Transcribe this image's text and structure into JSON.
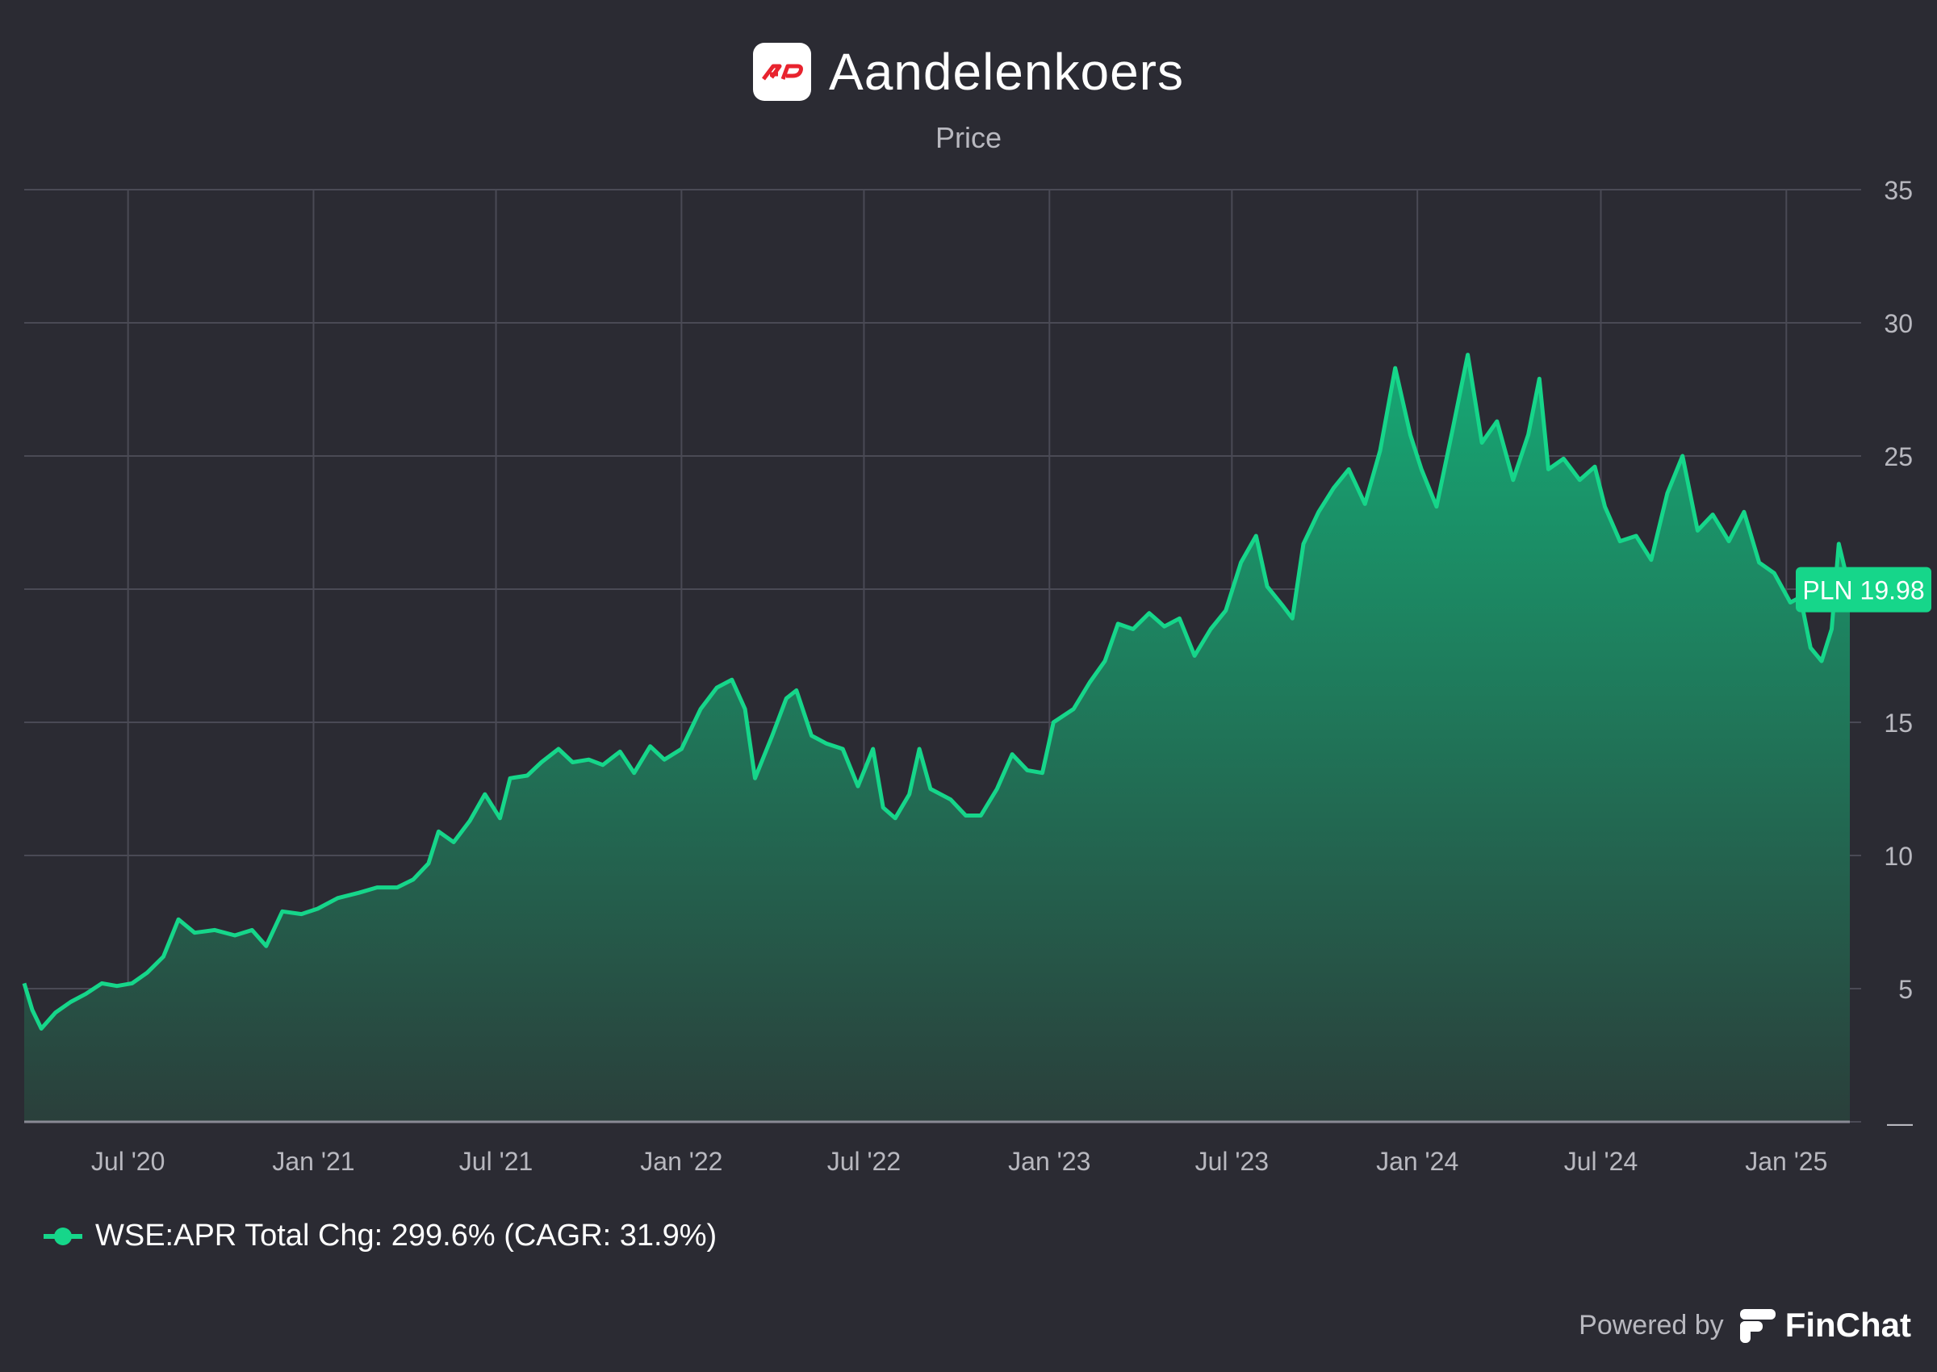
{
  "header": {
    "title": "Aandelenkoers",
    "subtitle": "Price"
  },
  "legend": {
    "label": "WSE:APR Total Chg: 299.6% (CAGR: 31.9%)",
    "color": "#16d68a"
  },
  "footer": {
    "powered_by": "Powered by",
    "brand": "FinChat"
  },
  "colors": {
    "background": "#2b2b33",
    "line": "#16d68a",
    "grid": "#4a4a55",
    "axis_text": "#b8b8bf",
    "logo_red": "#e8232e"
  },
  "chart_data": {
    "type": "area",
    "title": "Aandelenkoers",
    "subtitle": "Price",
    "currency": "PLN",
    "last_value_label": "PLN 19.98",
    "last_value": 19.98,
    "ylim": [
      0,
      35
    ],
    "yticks": [
      {
        "value": 35,
        "label": "35"
      },
      {
        "value": 30,
        "label": "30"
      },
      {
        "value": 25,
        "label": "25"
      },
      {
        "value": 20,
        "label": ""
      },
      {
        "value": 15,
        "label": "15"
      },
      {
        "value": 10,
        "label": "10"
      },
      {
        "value": 5,
        "label": "5"
      },
      {
        "value": 0,
        "label": "—"
      }
    ],
    "xlim": [
      "2020-03-20",
      "2025-03-05"
    ],
    "xticks": [
      {
        "date": "2020-07-01",
        "label": "Jul '20"
      },
      {
        "date": "2021-01-01",
        "label": "Jan '21"
      },
      {
        "date": "2021-07-01",
        "label": "Jul '21"
      },
      {
        "date": "2022-01-01",
        "label": "Jan '22"
      },
      {
        "date": "2022-07-01",
        "label": "Jul '22"
      },
      {
        "date": "2023-01-01",
        "label": "Jan '23"
      },
      {
        "date": "2023-07-01",
        "label": "Jul '23"
      },
      {
        "date": "2024-01-01",
        "label": "Jan '24"
      },
      {
        "date": "2024-07-01",
        "label": "Jul '24"
      },
      {
        "date": "2025-01-01",
        "label": "Jan '25"
      }
    ],
    "grid": true,
    "legend_position": "bottom-left",
    "series": [
      {
        "name": "WSE:APR",
        "points": [
          [
            "2020-03-20",
            5.2
          ],
          [
            "2020-03-28",
            4.2
          ],
          [
            "2020-04-06",
            3.5
          ],
          [
            "2020-04-20",
            4.1
          ],
          [
            "2020-05-05",
            4.5
          ],
          [
            "2020-05-20",
            4.8
          ],
          [
            "2020-06-05",
            5.2
          ],
          [
            "2020-06-20",
            5.1
          ],
          [
            "2020-07-05",
            5.2
          ],
          [
            "2020-07-20",
            5.6
          ],
          [
            "2020-08-05",
            6.2
          ],
          [
            "2020-08-20",
            7.6
          ],
          [
            "2020-09-05",
            7.1
          ],
          [
            "2020-09-25",
            7.2
          ],
          [
            "2020-10-15",
            7.0
          ],
          [
            "2020-11-01",
            7.2
          ],
          [
            "2020-11-15",
            6.6
          ],
          [
            "2020-12-01",
            7.9
          ],
          [
            "2020-12-20",
            7.8
          ],
          [
            "2021-01-05",
            8.0
          ],
          [
            "2021-01-25",
            8.4
          ],
          [
            "2021-02-15",
            8.6
          ],
          [
            "2021-03-05",
            8.8
          ],
          [
            "2021-03-25",
            8.8
          ],
          [
            "2021-04-10",
            9.1
          ],
          [
            "2021-04-25",
            9.7
          ],
          [
            "2021-05-05",
            10.9
          ],
          [
            "2021-05-20",
            10.5
          ],
          [
            "2021-06-05",
            11.3
          ],
          [
            "2021-06-20",
            12.3
          ],
          [
            "2021-07-05",
            11.4
          ],
          [
            "2021-07-15",
            12.9
          ],
          [
            "2021-08-01",
            13.0
          ],
          [
            "2021-08-15",
            13.5
          ],
          [
            "2021-09-01",
            14.0
          ],
          [
            "2021-09-15",
            13.5
          ],
          [
            "2021-10-01",
            13.6
          ],
          [
            "2021-10-15",
            13.4
          ],
          [
            "2021-11-01",
            13.9
          ],
          [
            "2021-11-15",
            13.1
          ],
          [
            "2021-12-01",
            14.1
          ],
          [
            "2021-12-15",
            13.6
          ],
          [
            "2022-01-01",
            14.0
          ],
          [
            "2022-01-20",
            15.5
          ],
          [
            "2022-02-05",
            16.3
          ],
          [
            "2022-02-20",
            16.6
          ],
          [
            "2022-03-05",
            15.5
          ],
          [
            "2022-03-15",
            12.9
          ],
          [
            "2022-04-01",
            14.5
          ],
          [
            "2022-04-15",
            15.9
          ],
          [
            "2022-04-25",
            16.2
          ],
          [
            "2022-05-10",
            14.5
          ],
          [
            "2022-05-25",
            14.2
          ],
          [
            "2022-06-10",
            14.0
          ],
          [
            "2022-06-25",
            12.6
          ],
          [
            "2022-07-10",
            14.0
          ],
          [
            "2022-07-20",
            11.8
          ],
          [
            "2022-08-01",
            11.4
          ],
          [
            "2022-08-15",
            12.3
          ],
          [
            "2022-08-25",
            14.0
          ],
          [
            "2022-09-05",
            12.5
          ],
          [
            "2022-09-25",
            12.1
          ],
          [
            "2022-10-10",
            11.5
          ],
          [
            "2022-10-25",
            11.5
          ],
          [
            "2022-11-10",
            12.5
          ],
          [
            "2022-11-25",
            13.8
          ],
          [
            "2022-12-10",
            13.2
          ],
          [
            "2022-12-25",
            13.1
          ],
          [
            "2023-01-05",
            15.0
          ],
          [
            "2023-01-25",
            15.5
          ],
          [
            "2023-02-10",
            16.5
          ],
          [
            "2023-02-25",
            17.3
          ],
          [
            "2023-03-10",
            18.7
          ],
          [
            "2023-03-25",
            18.5
          ],
          [
            "2023-04-10",
            19.1
          ],
          [
            "2023-04-25",
            18.6
          ],
          [
            "2023-05-10",
            18.9
          ],
          [
            "2023-05-25",
            17.5
          ],
          [
            "2023-06-10",
            18.5
          ],
          [
            "2023-06-25",
            19.2
          ],
          [
            "2023-07-10",
            21.0
          ],
          [
            "2023-07-25",
            22.0
          ],
          [
            "2023-08-05",
            20.1
          ],
          [
            "2023-08-20",
            19.4
          ],
          [
            "2023-08-30",
            18.9
          ],
          [
            "2023-09-10",
            21.7
          ],
          [
            "2023-09-25",
            22.9
          ],
          [
            "2023-10-10",
            23.8
          ],
          [
            "2023-10-25",
            24.5
          ],
          [
            "2023-11-10",
            23.2
          ],
          [
            "2023-11-25",
            25.2
          ],
          [
            "2023-12-10",
            28.3
          ],
          [
            "2023-12-25",
            25.8
          ],
          [
            "2024-01-05",
            24.5
          ],
          [
            "2024-01-20",
            23.1
          ],
          [
            "2024-02-05",
            26.0
          ],
          [
            "2024-02-20",
            28.8
          ],
          [
            "2024-03-05",
            25.5
          ],
          [
            "2024-03-20",
            26.3
          ],
          [
            "2024-04-05",
            24.1
          ],
          [
            "2024-04-20",
            25.8
          ],
          [
            "2024-05-01",
            27.9
          ],
          [
            "2024-05-10",
            24.5
          ],
          [
            "2024-05-25",
            24.9
          ],
          [
            "2024-06-10",
            24.1
          ],
          [
            "2024-06-25",
            24.6
          ],
          [
            "2024-07-05",
            23.1
          ],
          [
            "2024-07-20",
            21.8
          ],
          [
            "2024-08-05",
            22.0
          ],
          [
            "2024-08-20",
            21.1
          ],
          [
            "2024-09-05",
            23.6
          ],
          [
            "2024-09-20",
            25.0
          ],
          [
            "2024-10-05",
            22.2
          ],
          [
            "2024-10-20",
            22.8
          ],
          [
            "2024-11-05",
            21.8
          ],
          [
            "2024-11-20",
            22.9
          ],
          [
            "2024-12-05",
            21.0
          ],
          [
            "2024-12-20",
            20.6
          ],
          [
            "2025-01-05",
            19.5
          ],
          [
            "2025-01-15",
            19.7
          ],
          [
            "2025-01-25",
            17.8
          ],
          [
            "2025-02-05",
            17.3
          ],
          [
            "2025-02-15",
            18.5
          ],
          [
            "2025-02-22",
            21.7
          ],
          [
            "2025-03-05",
            19.98
          ]
        ]
      }
    ]
  }
}
